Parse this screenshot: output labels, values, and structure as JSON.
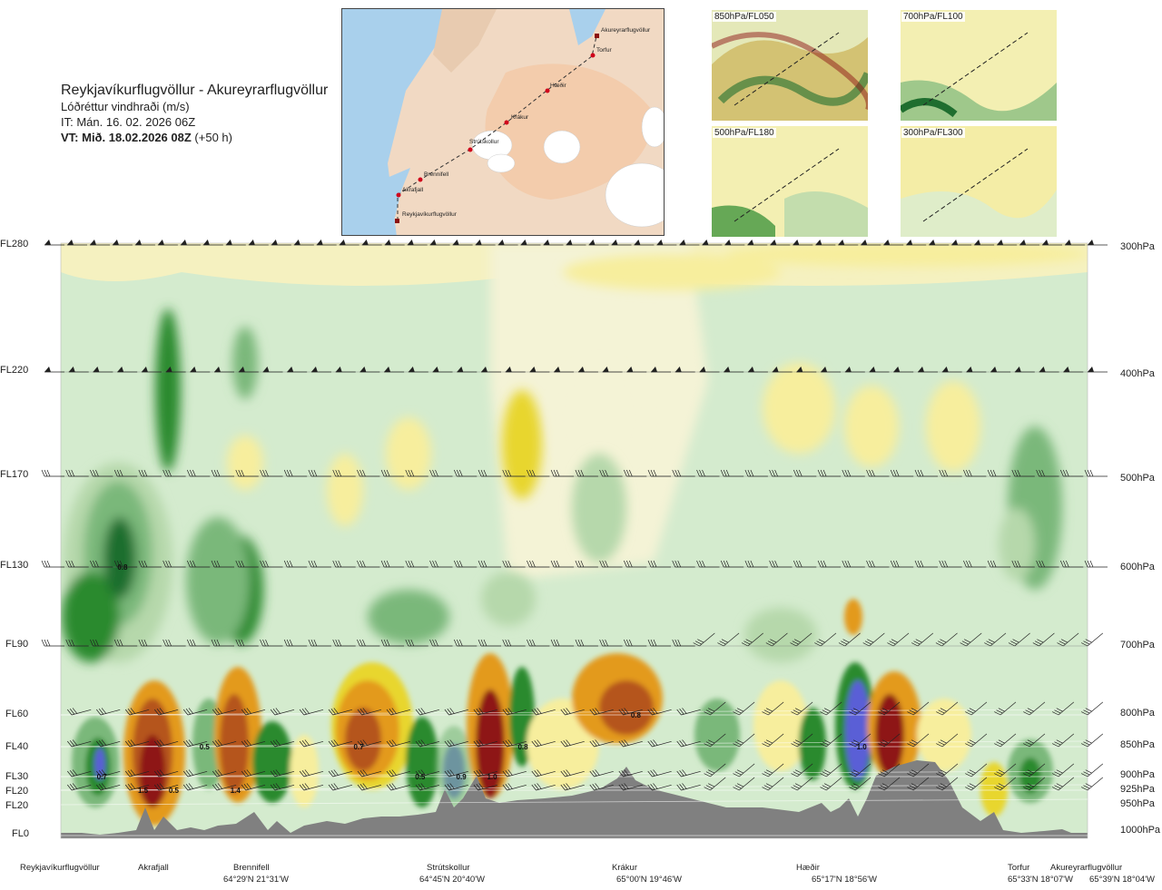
{
  "title": {
    "route": "Reykjavíkurflugvöllur - Akureyrarflugvöllur",
    "quantity": "Lóðréttur vindhraði (m/s)",
    "issue_time": "IT: Mán. 16. 02. 2026 06Z",
    "valid_time": "VT: Mið. 18.02.2026 08Z",
    "lead": "(+50 h)"
  },
  "map": {
    "points": [
      "Akureyrarflugvöllur",
      "Torfur",
      "Hæðir",
      "Krákur",
      "Strútskollur",
      "Brennifell",
      "Akrafjall",
      "Reykjavíkurflugvöllur"
    ]
  },
  "minimaps": [
    {
      "label": "850hPa/FL050"
    },
    {
      "label": "700hPa/FL100"
    },
    {
      "label": "500hPa/FL180"
    },
    {
      "label": "300hPa/FL300"
    }
  ],
  "chart_data": {
    "type": "heatmap",
    "title": "Lóðréttur vindhraði (m/s)",
    "y_left_ticks": [
      "FL280",
      "FL220",
      "FL170",
      "FL130",
      "FL90",
      "FL60",
      "FL40",
      "FL30",
      "FL20",
      "FL20",
      "FL0"
    ],
    "y_right_ticks": [
      "300hPa",
      "400hPa",
      "500hPa",
      "600hPa",
      "700hPa",
      "800hPa",
      "850hPa",
      "900hPa",
      "925hPa",
      "950hPa",
      "1000hPa"
    ],
    "locations": [
      {
        "name": "Reykjavíkurflugvöllur",
        "coord": ""
      },
      {
        "name": "Akrafjall",
        "coord": ""
      },
      {
        "name": "Brennifell",
        "coord": "64°29'N 21°31'W"
      },
      {
        "name": "Strútskollur",
        "coord": "64°45'N 20°40'W"
      },
      {
        "name": "Krákur",
        "coord": "65°00'N 19°46'W"
      },
      {
        "name": "Hæðir",
        "coord": "65°17'N 18°56'W"
      },
      {
        "name": "Torfur",
        "coord": "65°33'N 18°07'W"
      },
      {
        "name": "Akureyrarflugvöllur",
        "coord": "65°39'N 18°04'W"
      }
    ],
    "value_labels": [
      {
        "text": "0.8",
        "x": 0.06,
        "level": "FL130"
      },
      {
        "text": "0.7",
        "x": 0.04,
        "level": "FL30"
      },
      {
        "text": "1.5",
        "x": 0.08,
        "level": "FL20"
      },
      {
        "text": "0.5",
        "x": 0.11,
        "level": "FL20"
      },
      {
        "text": "0.5",
        "x": 0.14,
        "level": "FL40"
      },
      {
        "text": "1.4",
        "x": 0.17,
        "level": "FL20"
      },
      {
        "text": "0.7",
        "x": 0.29,
        "level": "FL40"
      },
      {
        "text": "0.5",
        "x": 0.35,
        "level": "FL30"
      },
      {
        "text": "0.9",
        "x": 0.39,
        "level": "FL30"
      },
      {
        "text": "1.0",
        "x": 0.42,
        "level": "FL30"
      },
      {
        "text": "0.8",
        "x": 0.45,
        "level": "FL40"
      },
      {
        "text": "0.8",
        "x": 0.56,
        "level": "FL60"
      },
      {
        "text": "1.0",
        "x": 0.78,
        "level": "FL40"
      }
    ],
    "colors": {
      "strong_down_blue": "#5a5fd6",
      "down_dkgreen": "#1f6e2f",
      "down_green": "#2a8a2f",
      "down_mid": "#7ab87a",
      "down_light": "#b6d8ab",
      "down_pale": "#d9ecd2",
      "neutral": "#f6f5dc",
      "up_pale": "#f7ee9d",
      "up_yellow": "#e8d62e",
      "up_orange": "#e39a1d",
      "up_brown": "#b5541a",
      "up_red": "#8e1616",
      "terrain": "#808080"
    }
  }
}
